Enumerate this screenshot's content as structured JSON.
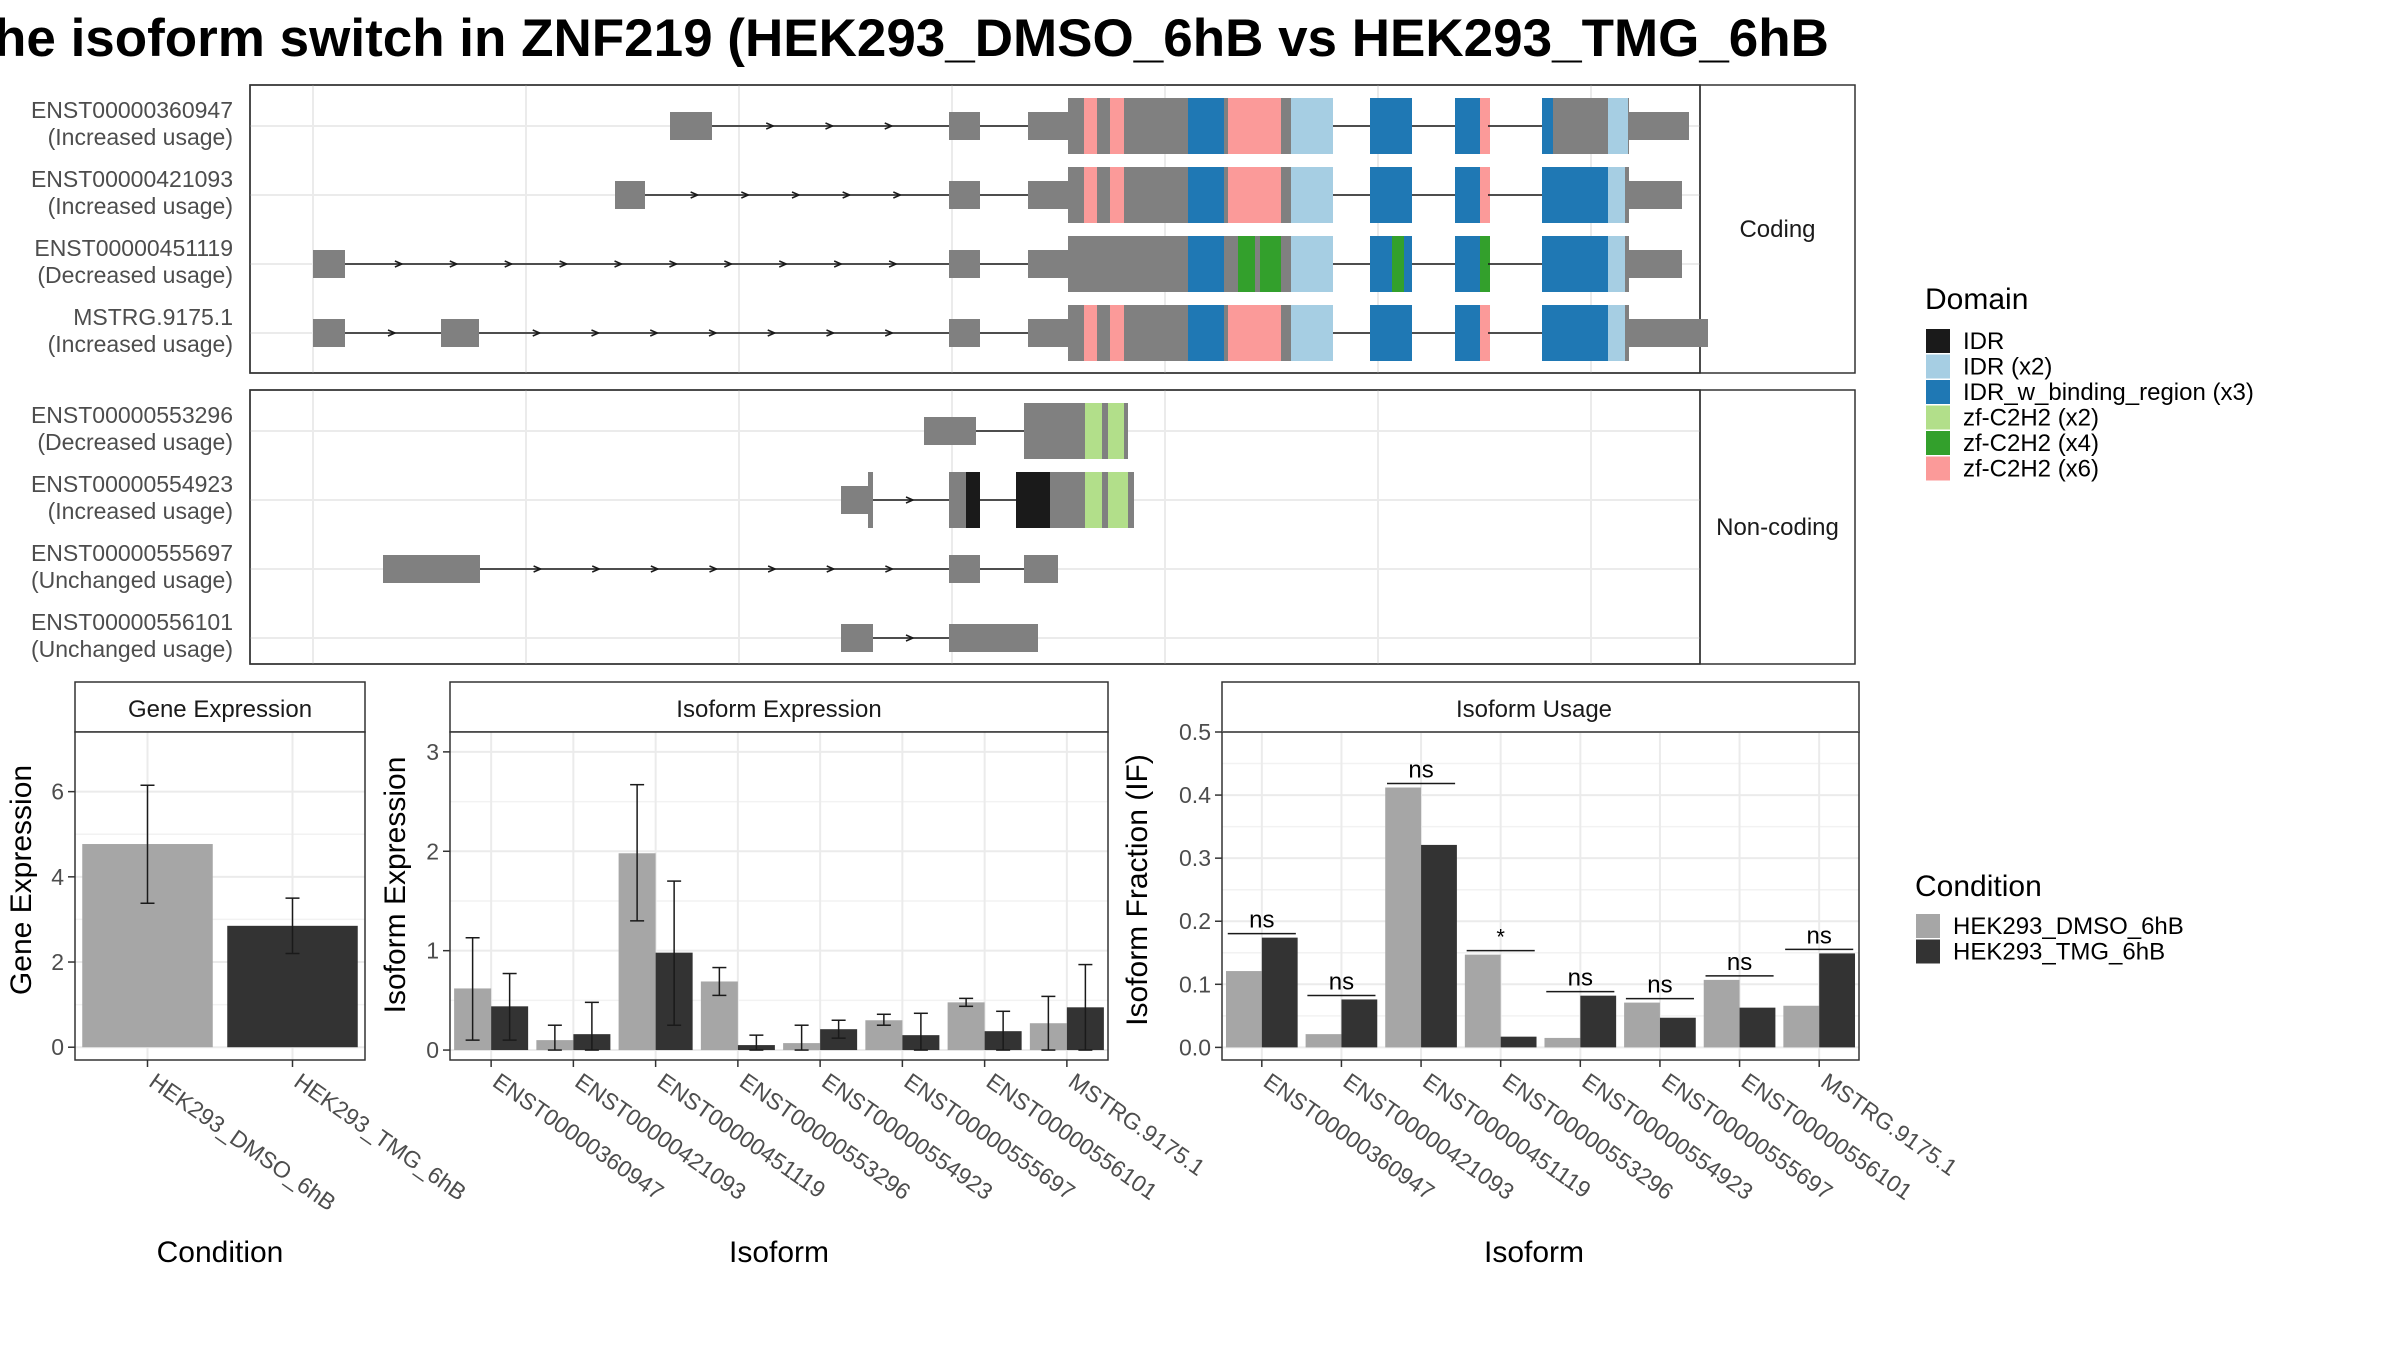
{
  "title": "he isoform switch in ZNF219 (HEK293_DMSO_6hB vs HEK293_TMG_6hB",
  "structure": {
    "facets": [
      "Coding",
      "Non-coding"
    ],
    "isoforms": [
      {
        "id": "ENST00000360947",
        "usage": "(Increased usage)",
        "facet": 0
      },
      {
        "id": "ENST00000421093",
        "usage": "(Increased usage)",
        "facet": 0
      },
      {
        "id": "ENST00000451119",
        "usage": "(Decreased usage)",
        "facet": 0
      },
      {
        "id": "MSTRG.9175.1",
        "usage": "(Increased usage)",
        "facet": 0
      },
      {
        "id": "ENST00000553296",
        "usage": "(Decreased usage)",
        "facet": 1
      },
      {
        "id": "ENST00000554923",
        "usage": "(Increased usage)",
        "facet": 1
      },
      {
        "id": "ENST00000555697",
        "usage": "(Unchanged usage)",
        "facet": 1
      },
      {
        "id": "ENST00000556101",
        "usage": "(Unchanged usage)",
        "facet": 1
      }
    ]
  },
  "legend_domain": {
    "title": "Domain",
    "entries": [
      {
        "label": "IDR",
        "color": "#1a1a1a"
      },
      {
        "label": "IDR (x2)",
        "color": "#a6cee3"
      },
      {
        "label": "IDR_w_binding_region (x3)",
        "color": "#1f78b4"
      },
      {
        "label": "zf-C2H2 (x2)",
        "color": "#b2df8a"
      },
      {
        "label": "zf-C2H2 (x4)",
        "color": "#33a02c"
      },
      {
        "label": "zf-C2H2 (x6)",
        "color": "#fb9a99"
      }
    ]
  },
  "legend_condition": {
    "title": "Condition",
    "entries": [
      {
        "label": "HEK293_DMSO_6hB",
        "color": "#a6a6a6"
      },
      {
        "label": "HEK293_TMG_6hB",
        "color": "#333333"
      }
    ]
  },
  "colors": {
    "exon": "#808080",
    "dmso": "#a6a6a6",
    "tmg": "#333333"
  },
  "chart_data": [
    {
      "type": "bar",
      "title": "Gene Expression",
      "xlabel": "Condition",
      "ylabel": "Gene Expression",
      "ylim": [
        -0.3,
        7.4
      ],
      "yticks": [
        0,
        2,
        4,
        6
      ],
      "categories": [
        "HEK293_DMSO_6hB",
        "HEK293_TMG_6hB"
      ],
      "values": [
        4.77,
        2.85
      ],
      "error_low": [
        3.38,
        2.2
      ],
      "error_high": [
        6.15,
        3.5
      ]
    },
    {
      "type": "bar",
      "title": "Isoform Expression",
      "xlabel": "Isoform",
      "ylabel": "Isoform Expression",
      "ylim": [
        -0.1,
        3.2
      ],
      "yticks": [
        0,
        1,
        2,
        3
      ],
      "categories": [
        "ENST00000360947",
        "ENST00000421093",
        "ENST00000451119",
        "ENST00000553296",
        "ENST00000554923",
        "ENST00000555697",
        "ENST00000556101",
        "MSTRG.9175.1"
      ],
      "series": [
        {
          "name": "HEK293_DMSO_6hB",
          "values": [
            0.62,
            0.1,
            1.98,
            0.69,
            0.07,
            0.3,
            0.48,
            0.27
          ],
          "error_low": [
            0.1,
            0.0,
            1.3,
            0.55,
            0.0,
            0.25,
            0.44,
            0.0
          ],
          "error_high": [
            1.13,
            0.25,
            2.67,
            0.83,
            0.25,
            0.36,
            0.52,
            0.54
          ]
        },
        {
          "name": "HEK293_TMG_6hB",
          "values": [
            0.44,
            0.16,
            0.98,
            0.05,
            0.21,
            0.15,
            0.19,
            0.43
          ],
          "error_low": [
            0.1,
            0.0,
            0.25,
            0.0,
            0.12,
            0.0,
            0.0,
            0.0
          ],
          "error_high": [
            0.77,
            0.48,
            1.7,
            0.15,
            0.3,
            0.37,
            0.39,
            0.86
          ]
        }
      ]
    },
    {
      "type": "bar",
      "title": "Isoform Usage",
      "xlabel": "Isoform",
      "ylabel": "Isoform Fraction (IF)",
      "ylim": [
        -0.02,
        0.5
      ],
      "yticks": [
        0.0,
        0.1,
        0.2,
        0.3,
        0.4,
        0.5
      ],
      "ytick_labels": [
        "0.0",
        "0.1",
        "0.2",
        "0.3",
        "0.4",
        "0.5"
      ],
      "categories": [
        "ENST00000360947",
        "ENST00000421093",
        "ENST00000451119",
        "ENST00000553296",
        "ENST00000554923",
        "ENST00000555697",
        "ENST00000556101",
        "MSTRG.9175.1"
      ],
      "series": [
        {
          "name": "HEK293_DMSO_6hB",
          "values": [
            0.121,
            0.021,
            0.412,
            0.147,
            0.015,
            0.071,
            0.107,
            0.066
          ]
        },
        {
          "name": "HEK293_TMG_6hB",
          "values": [
            0.174,
            0.076,
            0.321,
            0.017,
            0.082,
            0.047,
            0.063,
            0.149
          ]
        }
      ],
      "significance": [
        "ns",
        "ns",
        "ns",
        "*",
        "ns",
        "ns",
        "ns",
        "ns"
      ]
    }
  ]
}
